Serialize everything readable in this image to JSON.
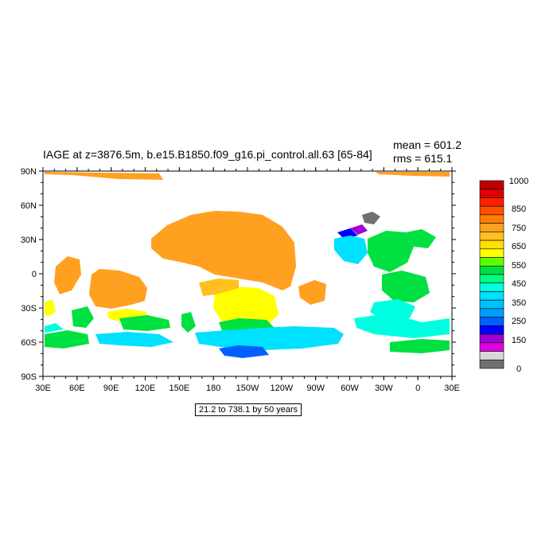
{
  "title": "IAGE at z=3876.5m, b.e15.B1850.f09_g16.pi_control.all.63 [65-84]",
  "stats": {
    "mean": "mean = 601.2",
    "rms": "rms = 615.1"
  },
  "info_box": "21.2 to 738.1 by 50 years",
  "axes": {
    "y_ticks": [
      "90N",
      "60N",
      "30N",
      "0",
      "30S",
      "60S",
      "90S"
    ],
    "x_ticks": [
      "30E",
      "60E",
      "90E",
      "120E",
      "150E",
      "180",
      "150W",
      "120W",
      "90W",
      "60W",
      "30W",
      "0",
      "30E"
    ]
  },
  "colorbar": {
    "labels": [
      "1000",
      "850",
      "750",
      "650",
      "550",
      "450",
      "350",
      "250",
      "150",
      "0"
    ],
    "colors": [
      "#c00000",
      "#e00000",
      "#ff2000",
      "#ff5000",
      "#ff8000",
      "#ffa020",
      "#ffc020",
      "#ffe000",
      "#ffff00",
      "#60ff00",
      "#00e040",
      "#00ff80",
      "#00ffe0",
      "#00e0ff",
      "#00c0ff",
      "#00a0ff",
      "#0060ff",
      "#0000ff",
      "#a000d0",
      "#e000e0",
      "#d8d8d8",
      "#707070"
    ]
  },
  "regions": {
    "arctic_strip": "#ffa020",
    "north_pacific": "#ffa020",
    "arctic_gray": "#707070",
    "north_atlantic_purple": "#a000d0",
    "north_atlantic_blue": "#0000ff",
    "north_atlantic_cyan": "#00e0ff",
    "atlantic_green": "#00e040",
    "south_pacific_yellow": "#ffff00",
    "south_pacific_gold": "#ffc020",
    "southern_ocean_green": "#00e040",
    "southern_ocean_cyan": "#00e0ff",
    "southern_ocean_blue": "#0060ff",
    "indian_ocean_gold": "#ffa020",
    "south_atlantic_cyan": "#00ffe0"
  }
}
